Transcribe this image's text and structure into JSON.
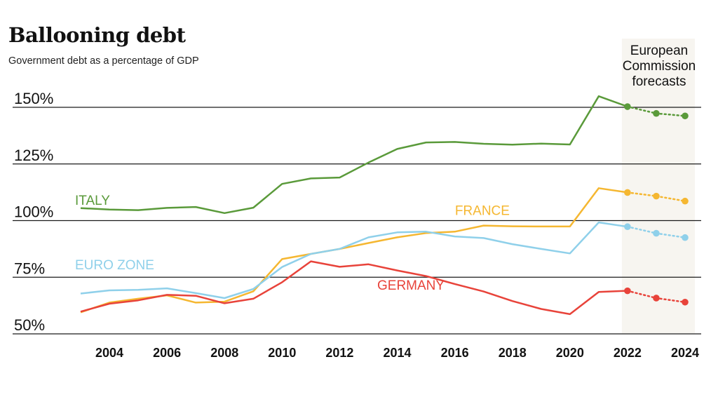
{
  "header": {
    "title": "Ballooning debt",
    "subtitle": "Government debt as a percentage of GDP"
  },
  "forecast": {
    "label_lines": [
      "European",
      "Commission",
      "forecasts"
    ],
    "start_year": 2022,
    "end_year": 2024,
    "band_color": "#f7f5f0"
  },
  "chart_data": {
    "type": "line",
    "title": "Ballooning debt",
    "subtitle": "Government debt as a percentage of GDP",
    "xlabel": "",
    "ylabel": "",
    "xlim": [
      2003,
      2024
    ],
    "ylim": [
      50,
      150
    ],
    "grid": "horizontal",
    "y_ticks": [
      {
        "value": 150,
        "label": "150%"
      },
      {
        "value": 125,
        "label": "125%"
      },
      {
        "value": 100,
        "label": "100%"
      },
      {
        "value": 75,
        "label": "75%"
      },
      {
        "value": 50,
        "label": "50%"
      }
    ],
    "x_ticks": [
      {
        "value": 2004,
        "label": "2004"
      },
      {
        "value": 2006,
        "label": "2006"
      },
      {
        "value": 2008,
        "label": "2008"
      },
      {
        "value": 2010,
        "label": "2010"
      },
      {
        "value": 2012,
        "label": "2012"
      },
      {
        "value": 2014,
        "label": "2014"
      },
      {
        "value": 2016,
        "label": "2016"
      },
      {
        "value": 2018,
        "label": "2018"
      },
      {
        "value": 2020,
        "label": "2020"
      },
      {
        "value": 2022,
        "label": "2022"
      },
      {
        "value": 2024,
        "label": "2024"
      }
    ],
    "series": [
      {
        "name": "ITALY",
        "color": "#5a9a3a",
        "label_anchor": {
          "year": 2003,
          "value": 107
        },
        "x": [
          2003,
          2004,
          2005,
          2006,
          2007,
          2008,
          2009,
          2010,
          2011,
          2012,
          2013,
          2014,
          2015,
          2016,
          2017,
          2018,
          2019,
          2020,
          2021,
          2022
        ],
        "values": [
          105.5,
          104.9,
          104.6,
          105.6,
          106.0,
          103.3,
          105.7,
          116.2,
          118.6,
          119.0,
          125.6,
          131.6,
          134.5,
          134.7,
          133.9,
          133.5,
          134.0,
          133.6,
          154.9,
          150.3
        ],
        "forecast_x": [
          2022,
          2023,
          2024
        ],
        "forecast_values": [
          150.3,
          147.3,
          146.2
        ]
      },
      {
        "name": "FRANCE",
        "color": "#f5b731",
        "label_anchor": {
          "year": 2016.2,
          "value": 102.5
        },
        "x": [
          2003,
          2004,
          2005,
          2006,
          2007,
          2008,
          2009,
          2010,
          2011,
          2012,
          2013,
          2014,
          2015,
          2016,
          2017,
          2018,
          2019,
          2020,
          2021,
          2022
        ],
        "values": [
          59.5,
          63.8,
          65.5,
          67.0,
          63.8,
          64.2,
          68.8,
          83.0,
          85.3,
          87.5,
          90.1,
          92.6,
          94.5,
          95.1,
          97.8,
          97.5,
          97.4,
          97.4,
          114.3,
          112.4
        ],
        "forecast_x": [
          2022,
          2023,
          2024
        ],
        "forecast_values": [
          112.4,
          110.8,
          108.6
        ]
      },
      {
        "name": "EURO ZONE",
        "color": "#8fd0ea",
        "label_anchor": {
          "year": 2003,
          "value": 78.5
        },
        "x": [
          2003,
          2004,
          2005,
          2006,
          2007,
          2008,
          2009,
          2010,
          2011,
          2012,
          2013,
          2014,
          2015,
          2016,
          2017,
          2018,
          2019,
          2020,
          2021,
          2022
        ],
        "values": [
          67.8,
          69.2,
          69.4,
          70.1,
          68.0,
          65.8,
          69.8,
          79.5,
          85.3,
          87.5,
          92.6,
          94.8,
          95.1,
          93.0,
          92.3,
          89.6,
          87.5,
          85.5,
          99.2,
          97.3
        ],
        "forecast_x": [
          2022,
          2023,
          2024
        ],
        "forecast_values": [
          97.3,
          94.4,
          92.5
        ]
      },
      {
        "name": "GERMANY",
        "color": "#e8433a",
        "label_anchor": {
          "year": 2013.5,
          "value": 69.5
        },
        "x": [
          2003,
          2004,
          2005,
          2006,
          2007,
          2008,
          2009,
          2010,
          2011,
          2012,
          2013,
          2014,
          2015,
          2016,
          2017,
          2018,
          2019,
          2020,
          2021,
          2022
        ],
        "values": [
          59.8,
          63.3,
          64.8,
          67.2,
          66.8,
          63.5,
          65.5,
          72.8,
          82.0,
          79.6,
          80.7,
          78.0,
          75.5,
          72.0,
          68.7,
          64.5,
          61.0,
          58.7,
          68.5,
          69.0
        ],
        "forecast_x": [
          2022,
          2023,
          2024
        ],
        "forecast_values": [
          69.0,
          65.8,
          64.0
        ]
      }
    ]
  }
}
